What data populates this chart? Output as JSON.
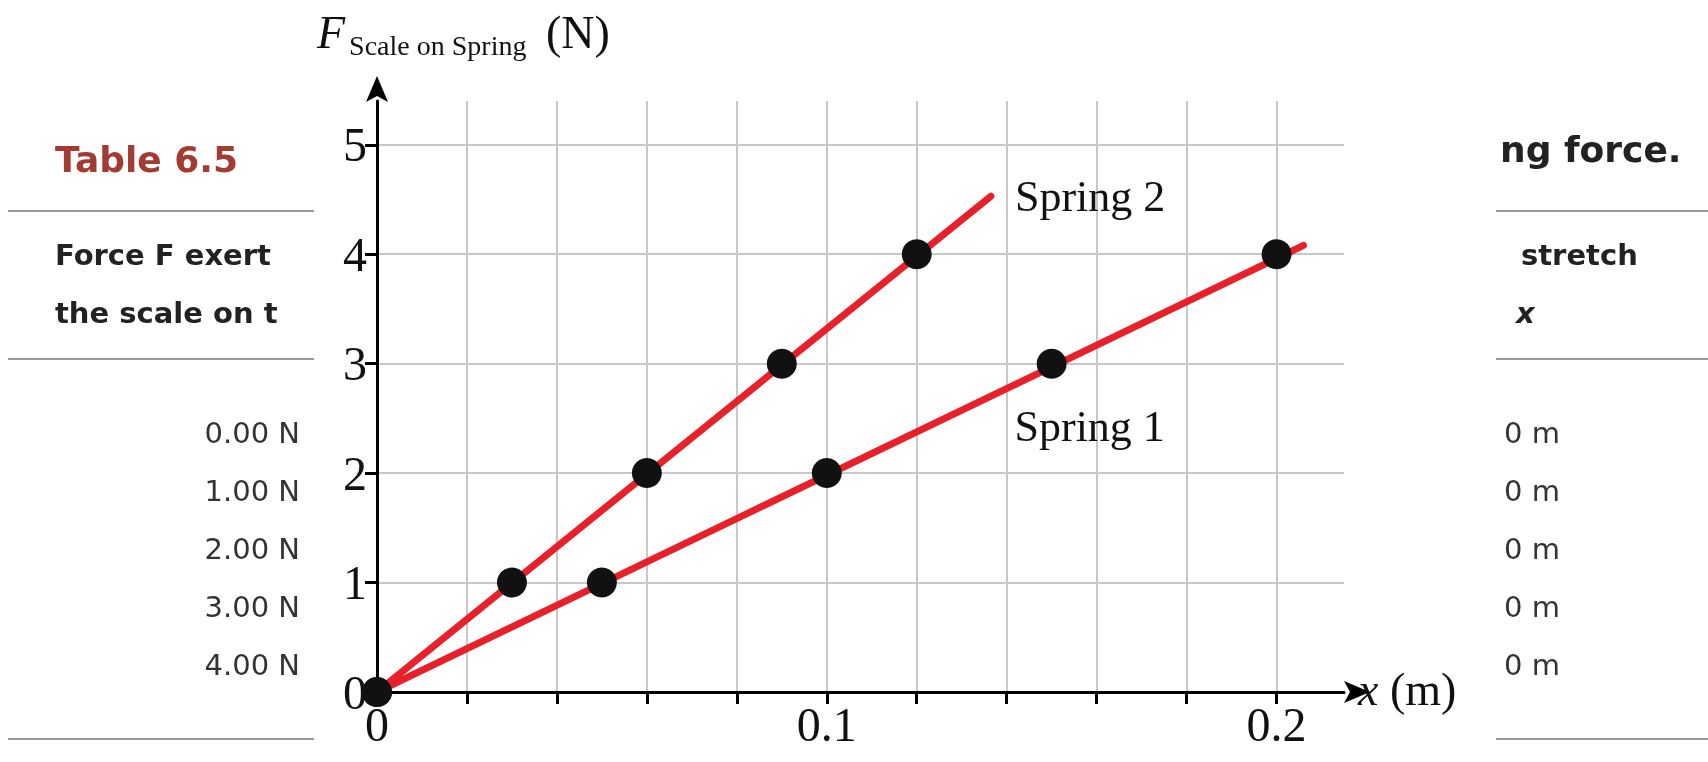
{
  "chart_data": {
    "type": "scatter",
    "xlabel": "x (m)",
    "ylabel": "F$_{Scale on Spring}$ (N)",
    "xlim": [
      0,
      0.215
    ],
    "xticks": [
      0,
      {
        "value": 0.02,
        "label": null
      },
      {
        "value": 0.04,
        "label": null
      },
      {
        "value": 0.06,
        "label": null
      },
      {
        "value": 0.08,
        "label": null
      },
      0.1,
      {
        "value": 0.12,
        "label": null
      },
      {
        "value": 0.14,
        "label": null
      },
      {
        "value": 0.16,
        "label": null
      },
      {
        "value": 0.18,
        "label": null
      },
      0.2
    ],
    "ylim": [
      0,
      5.4
    ],
    "yticks": [
      0,
      1,
      2,
      3,
      4,
      5
    ],
    "grid": true,
    "marker": "circle",
    "series": [
      {
        "name": "Spring 1",
        "type": "line",
        "marker": "none",
        "color": "#e8202a",
        "x": [
          0,
          0.206
        ],
        "values": [
          0,
          4.08
        ]
      },
      {
        "name": "Spring 2",
        "type": "line",
        "marker": "none",
        "color": "#e8202a",
        "x": [
          0,
          0.1365
        ],
        "values": [
          0,
          4.53
        ]
      },
      {
        "type": "scatter",
        "color": "#111111",
        "x": [
          0,
          0.05,
          0.1,
          0.15,
          0.2
        ],
        "values": [
          0,
          1,
          2,
          3,
          4
        ]
      },
      {
        "type": "scatter",
        "color": "#111111",
        "x": [
          0,
          0.03,
          0.06,
          0.09,
          0.12
        ],
        "values": [
          0,
          1,
          2,
          3,
          4
        ]
      }
    ],
    "annotations": [
      "Table 6.5",
      "Force F exert",
      "the scale on t",
      "0.00 N",
      "1.00 N",
      "2.00 N",
      "3.00 N",
      "4.00 N",
      "ng force.",
      "stretch",
      "x",
      "0 m",
      "0 m",
      "0 m",
      "0 m",
      "0 m"
    ]
  }
}
